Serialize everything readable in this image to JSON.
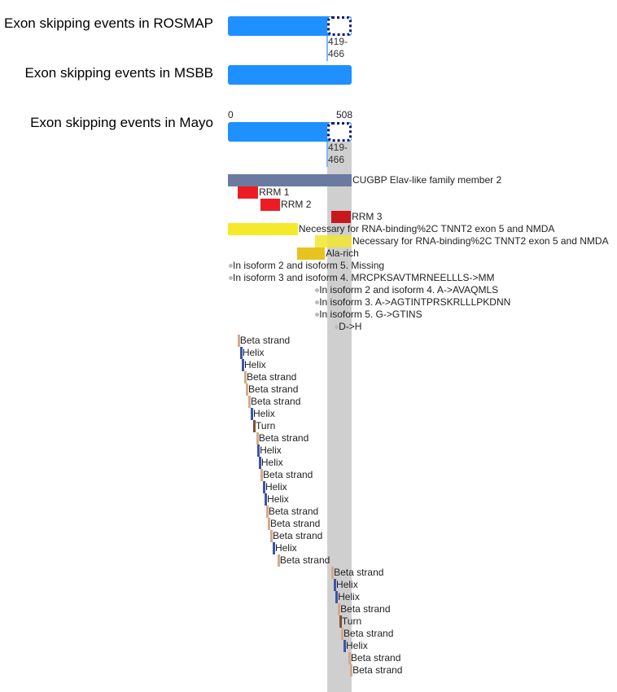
{
  "tracks": [
    {
      "title": "Exon skipping events in ROSMAP",
      "exon": "419-466"
    },
    {
      "title": "Exon skipping events in MSBB"
    },
    {
      "title": "Exon skipping events in Mayo",
      "exon": "419-466"
    }
  ],
  "axis": {
    "min": 0,
    "max": 508,
    "min_label": "0",
    "max_label": "508"
  },
  "highlight": {
    "start": 419,
    "end": 508
  },
  "colors": {
    "bar": "#1e90ff",
    "chain": "#6b7aa1",
    "rrm": "#ed1c24",
    "rrm3": "#c8171e",
    "region": "#f5ea2a",
    "region_overlap": "#cfc32a",
    "ala": "#e8c21f",
    "helix": "#3b55a8",
    "beta": "#d4aa8a",
    "turn": "#7a5232"
  },
  "features": [
    {
      "label": "CUGBP Elav-like family member 2",
      "start": 0,
      "end": 508,
      "color": "#6b7aa1"
    },
    {
      "label": "RRM 1",
      "start": 40,
      "end": 124,
      "color": "#ed1c24"
    },
    {
      "label": "RRM 2",
      "start": 134,
      "end": 214,
      "color": "#ed1c24"
    },
    {
      "label": "RRM 3",
      "start": 424,
      "end": 505,
      "color": "#c8171e"
    },
    {
      "label": "Necessary for RNA-binding%2C TNNT2 exon 5 and NMDA",
      "start": 0,
      "end": 287,
      "color": "#f5ea2a"
    },
    {
      "label": "Necessary for RNA-binding%2C TNNT2 exon 5 and NMDA",
      "start": 358,
      "end": 508,
      "color": "#f2e62e"
    },
    {
      "label": "Ala-rich",
      "start": 284,
      "end": 398,
      "color": "#e8c21f"
    }
  ],
  "variants": [
    {
      "label": "In isoform 2 and isoform 5. Missing",
      "pos": 10
    },
    {
      "label": "In isoform 3 and isoform 4. MRCPKSAVTMRNEELLLS->MM",
      "pos": 10
    },
    {
      "label": "In isoform 2 and isoform 4. A->AVAQMLS",
      "pos": 365
    },
    {
      "label": "In isoform 3. A->AGTINTPRSKRLLLPKDNN",
      "pos": 365
    },
    {
      "label": "In isoform 5. G->GTINS",
      "pos": 365
    },
    {
      "label": "D->H",
      "pos": 445
    }
  ],
  "secondary": [
    {
      "label": "Beta strand",
      "pos": 43,
      "type": "beta"
    },
    {
      "label": "Helix",
      "pos": 53,
      "type": "helix"
    },
    {
      "label": "Helix",
      "pos": 60,
      "type": "helix"
    },
    {
      "label": "Beta strand",
      "pos": 70,
      "type": "beta"
    },
    {
      "label": "Beta strand",
      "pos": 77,
      "type": "beta"
    },
    {
      "label": "Beta strand",
      "pos": 87,
      "type": "beta"
    },
    {
      "label": "Helix",
      "pos": 97,
      "type": "helix"
    },
    {
      "label": "Turn",
      "pos": 107,
      "type": "turn"
    },
    {
      "label": "Beta strand",
      "pos": 120,
      "type": "beta"
    },
    {
      "label": "Helix",
      "pos": 124,
      "type": "helix"
    },
    {
      "label": "Helix",
      "pos": 130,
      "type": "helix"
    },
    {
      "label": "Beta strand",
      "pos": 137,
      "type": "beta"
    },
    {
      "label": "Helix",
      "pos": 147,
      "type": "helix"
    },
    {
      "label": "Helix",
      "pos": 154,
      "type": "helix"
    },
    {
      "label": "Beta strand",
      "pos": 160,
      "type": "beta"
    },
    {
      "label": "Beta strand",
      "pos": 167,
      "type": "beta"
    },
    {
      "label": "Beta strand",
      "pos": 177,
      "type": "beta"
    },
    {
      "label": "Helix",
      "pos": 187,
      "type": "helix"
    },
    {
      "label": "Beta strand",
      "pos": 207,
      "type": "beta"
    },
    {
      "label": "Beta strand",
      "pos": 428,
      "type": "beta"
    },
    {
      "label": "Helix",
      "pos": 438,
      "type": "helix"
    },
    {
      "label": "Helix",
      "pos": 445,
      "type": "helix"
    },
    {
      "label": "Beta strand",
      "pos": 455,
      "type": "beta"
    },
    {
      "label": "Turn",
      "pos": 461,
      "type": "turn"
    },
    {
      "label": "Beta strand",
      "pos": 468,
      "type": "beta"
    },
    {
      "label": "Helix",
      "pos": 478,
      "type": "helix"
    },
    {
      "label": "Beta strand",
      "pos": 498,
      "type": "beta"
    },
    {
      "label": "Beta strand",
      "pos": 505,
      "type": "beta"
    }
  ]
}
